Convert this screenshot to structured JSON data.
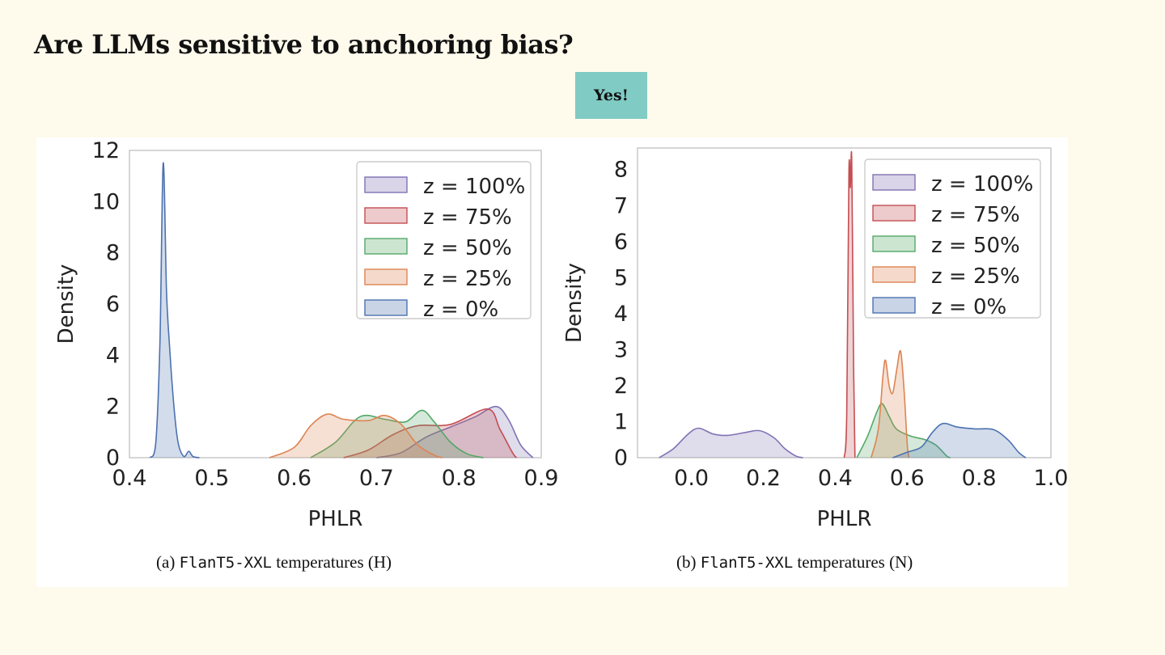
{
  "slide": {
    "title": "Are LLMs sensitive to anchoring bias?",
    "badge": "Yes!"
  },
  "captions": [
    {
      "prefix": "(a) ",
      "model": "FlanT5-XXL",
      "suffix": " temperatures (H)"
    },
    {
      "prefix": "(b) ",
      "model": "FlanT5-XXL",
      "suffix": " temperatures (N)"
    }
  ],
  "chart_data": [
    {
      "type": "area",
      "xlabel": "PHLR",
      "ylabel": "Density",
      "xlim": [
        0.4,
        0.9
      ],
      "ylim": [
        0,
        12
      ],
      "xticks": [
        "0.4",
        "0.5",
        "0.6",
        "0.7",
        "0.8",
        "0.9"
      ],
      "yticks": [
        "0",
        "2",
        "4",
        "6",
        "8",
        "10",
        "12"
      ],
      "grid": false,
      "legend_position": "top-right",
      "series": [
        {
          "name": "z = 100%",
          "color": "#8172b3",
          "points": [
            [
              0.7,
              0
            ],
            [
              0.73,
              0.2
            ],
            [
              0.76,
              0.8
            ],
            [
              0.79,
              1.2
            ],
            [
              0.82,
              1.6
            ],
            [
              0.845,
              2.0
            ],
            [
              0.86,
              1.5
            ],
            [
              0.875,
              0.5
            ],
            [
              0.89,
              0
            ]
          ]
        },
        {
          "name": "z = 75%",
          "color": "#c44e52",
          "points": [
            [
              0.66,
              0
            ],
            [
              0.69,
              0.3
            ],
            [
              0.72,
              0.9
            ],
            [
              0.75,
              1.25
            ],
            [
              0.79,
              1.3
            ],
            [
              0.835,
              1.9
            ],
            [
              0.85,
              1.1
            ],
            [
              0.865,
              0.2
            ],
            [
              0.87,
              0
            ]
          ]
        },
        {
          "name": "z = 50%",
          "color": "#55a868",
          "points": [
            [
              0.62,
              0
            ],
            [
              0.65,
              0.6
            ],
            [
              0.68,
              1.6
            ],
            [
              0.71,
              1.5
            ],
            [
              0.735,
              1.4
            ],
            [
              0.755,
              1.85
            ],
            [
              0.77,
              1.4
            ],
            [
              0.79,
              0.6
            ],
            [
              0.81,
              0.15
            ],
            [
              0.83,
              0
            ]
          ]
        },
        {
          "name": "z = 25%",
          "color": "#dd8452",
          "points": [
            [
              0.57,
              0
            ],
            [
              0.6,
              0.4
            ],
            [
              0.62,
              1.25
            ],
            [
              0.64,
              1.7
            ],
            [
              0.66,
              1.5
            ],
            [
              0.69,
              1.45
            ],
            [
              0.71,
              1.65
            ],
            [
              0.73,
              1.3
            ],
            [
              0.75,
              0.5
            ],
            [
              0.77,
              0.1
            ],
            [
              0.78,
              0
            ]
          ]
        },
        {
          "name": "z = 0%",
          "color": "#4c72b0",
          "points": [
            [
              0.425,
              0
            ],
            [
              0.432,
              0.6
            ],
            [
              0.437,
              4.5
            ],
            [
              0.441,
              11.5
            ],
            [
              0.445,
              6.5
            ],
            [
              0.449,
              4.2
            ],
            [
              0.454,
              2.0
            ],
            [
              0.459,
              0.6
            ],
            [
              0.466,
              0.05
            ],
            [
              0.472,
              0.25
            ],
            [
              0.477,
              0.05
            ],
            [
              0.485,
              0
            ]
          ]
        }
      ]
    },
    {
      "type": "area",
      "xlabel": "PHLR",
      "ylabel": "Density",
      "xlim": [
        -0.15,
        1.0
      ],
      "ylim": [
        0,
        8.6
      ],
      "xticks": [
        "0.0",
        "0.2",
        "0.4",
        "0.6",
        "0.8",
        "1.0"
      ],
      "yticks": [
        "0",
        "1",
        "2",
        "3",
        "4",
        "5",
        "6",
        "7",
        "8"
      ],
      "grid": false,
      "legend_position": "top-right",
      "series": [
        {
          "name": "z = 100%",
          "color": "#8172b3",
          "points": [
            [
              -0.09,
              0
            ],
            [
              -0.05,
              0.25
            ],
            [
              -0.01,
              0.65
            ],
            [
              0.02,
              0.82
            ],
            [
              0.06,
              0.66
            ],
            [
              0.1,
              0.62
            ],
            [
              0.15,
              0.7
            ],
            [
              0.19,
              0.75
            ],
            [
              0.23,
              0.55
            ],
            [
              0.26,
              0.25
            ],
            [
              0.29,
              0.05
            ],
            [
              0.31,
              0
            ]
          ]
        },
        {
          "name": "z = 75%",
          "color": "#c44e52",
          "points": [
            [
              0.425,
              0
            ],
            [
              0.432,
              1.2
            ],
            [
              0.438,
              7.9
            ],
            [
              0.442,
              7.5
            ],
            [
              0.446,
              8.25
            ],
            [
              0.451,
              2.5
            ],
            [
              0.455,
              0
            ]
          ]
        },
        {
          "name": "z = 50%",
          "color": "#55a868",
          "points": [
            [
              0.46,
              0
            ],
            [
              0.49,
              0.6
            ],
            [
              0.515,
              1.25
            ],
            [
              0.53,
              1.5
            ],
            [
              0.55,
              1.15
            ],
            [
              0.57,
              0.8
            ],
            [
              0.61,
              0.6
            ],
            [
              0.65,
              0.5
            ],
            [
              0.68,
              0.35
            ],
            [
              0.71,
              0.05
            ],
            [
              0.72,
              0
            ]
          ]
        },
        {
          "name": "z = 25%",
          "color": "#dd8452",
          "points": [
            [
              0.5,
              0
            ],
            [
              0.52,
              0.8
            ],
            [
              0.533,
              2.3
            ],
            [
              0.54,
              2.7
            ],
            [
              0.55,
              2.0
            ],
            [
              0.56,
              1.8
            ],
            [
              0.572,
              2.5
            ],
            [
              0.582,
              2.95
            ],
            [
              0.592,
              1.8
            ],
            [
              0.6,
              0.4
            ],
            [
              0.605,
              0
            ]
          ]
        },
        {
          "name": "z = 0%",
          "color": "#4c72b0",
          "points": [
            [
              0.56,
              0
            ],
            [
              0.6,
              0.15
            ],
            [
              0.64,
              0.3
            ],
            [
              0.67,
              0.7
            ],
            [
              0.7,
              0.95
            ],
            [
              0.74,
              0.85
            ],
            [
              0.79,
              0.8
            ],
            [
              0.84,
              0.78
            ],
            [
              0.88,
              0.5
            ],
            [
              0.91,
              0.15
            ],
            [
              0.93,
              0
            ]
          ]
        }
      ]
    }
  ]
}
